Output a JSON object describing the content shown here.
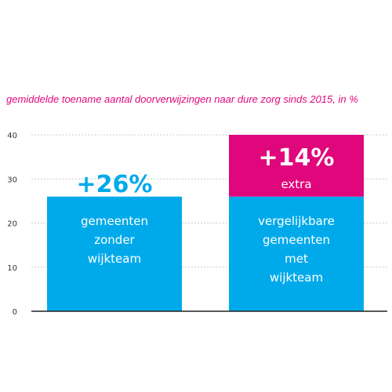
{
  "chart_data": {
    "type": "bar",
    "title": "gemiddelde toename aantal doorverwijzingen naar dure zorg sinds 2015, in %",
    "ylim": [
      0,
      40
    ],
    "yticks": [
      0,
      10,
      20,
      30,
      40
    ],
    "grid": true,
    "categories": [
      "gemeenten zonder wijkteam",
      "vergelijkbare gemeenten met wijkteam"
    ],
    "category_lines": [
      [
        "gemeenten",
        "zonder",
        "wijkteam"
      ],
      [
        "vergelijkbare",
        "gemeenten",
        "met",
        "wijkteam"
      ]
    ],
    "series": [
      {
        "values": [
          26,
          26
        ]
      },
      {
        "values": [
          0,
          14
        ]
      }
    ],
    "annotations": [
      {
        "text": "+26%"
      },
      {
        "text": "+14%",
        "sub": "extra"
      }
    ],
    "colors": {
      "base": "#00aaea",
      "extra": "#e0067c",
      "title": "#e0077d",
      "axis": "#222222",
      "grid": "#cccccc"
    }
  }
}
